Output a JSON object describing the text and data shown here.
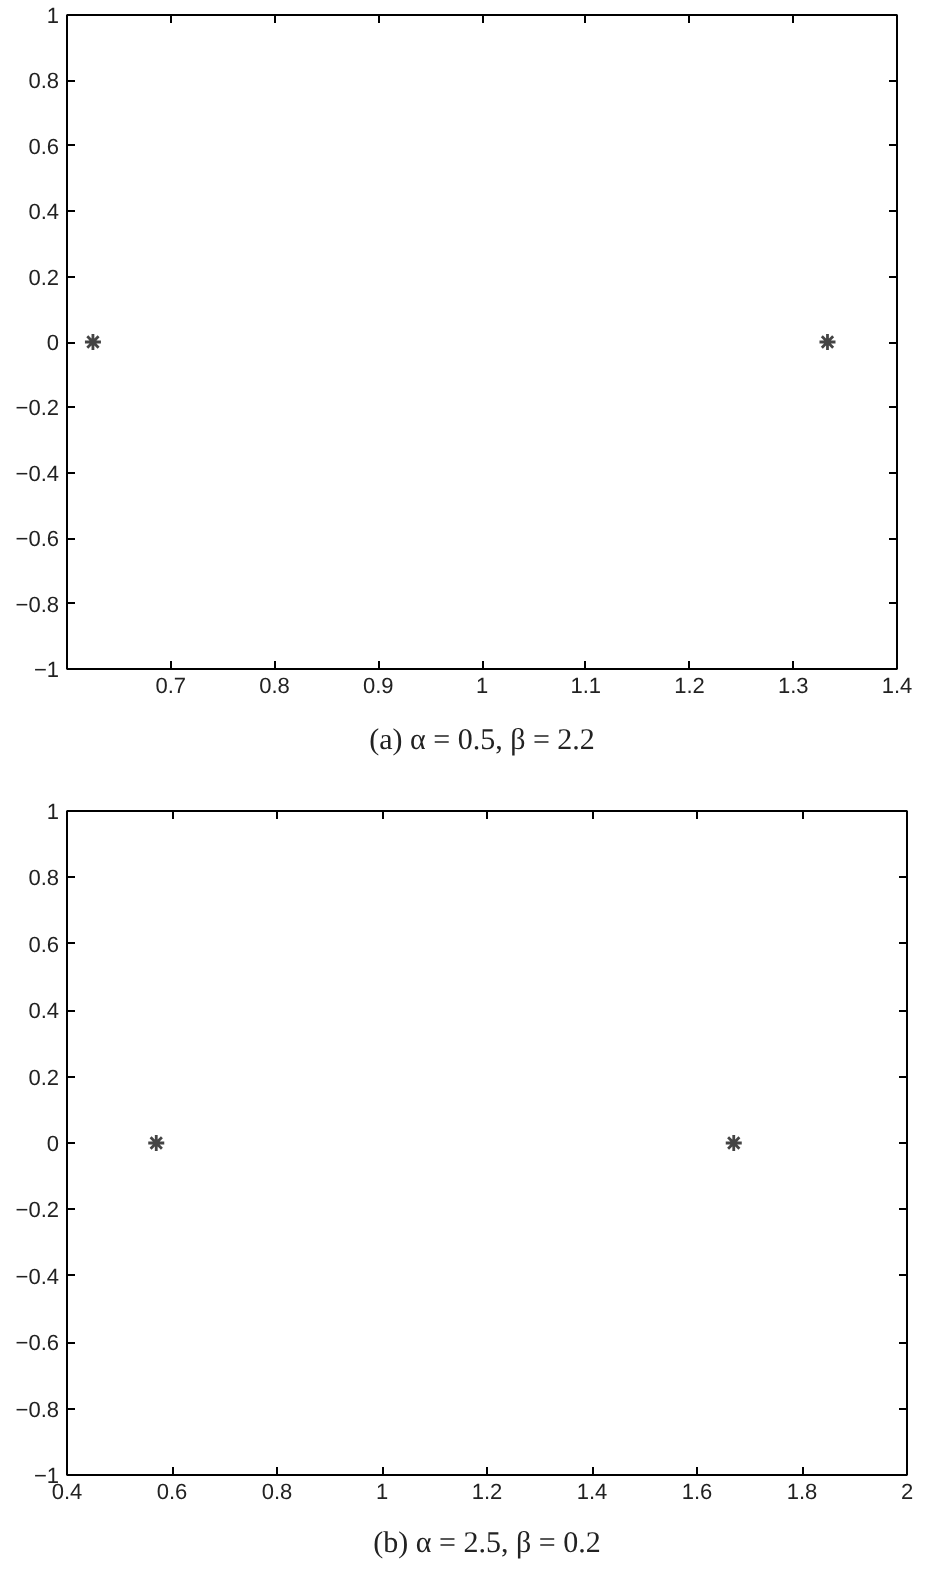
{
  "chart_data": [
    {
      "type": "scatter",
      "title": "(a) α = 0.5, β = 2.2",
      "x": [
        0.625,
        1.333
      ],
      "values": [
        0,
        0
      ],
      "color": "#444444",
      "marker": "cross",
      "grid": false,
      "xlim": [
        0.6,
        1.4
      ],
      "xticks": [
        0.7,
        0.8,
        0.9,
        1,
        1.1,
        1.2,
        1.3,
        1.4
      ],
      "ylim": [
        -1,
        1
      ],
      "yticks": [
        {
          "value": -1,
          "label": "−1"
        },
        {
          "value": -0.8,
          "label": "−0.8"
        },
        {
          "value": -0.6,
          "label": "−0.6"
        },
        {
          "value": -0.4,
          "label": "−0.4"
        },
        {
          "value": -0.2,
          "label": "−0.2"
        },
        0,
        0.2,
        0.4,
        0.6,
        0.8,
        1
      ]
    },
    {
      "type": "scatter",
      "title": "(b) α = 2.5, β = 0.2",
      "x": [
        0.57,
        1.67
      ],
      "values": [
        0,
        0
      ],
      "color": "#444444",
      "marker": "cross",
      "grid": false,
      "xlim": [
        0.4,
        2
      ],
      "xticks": [
        0.4,
        0.6,
        0.8,
        1,
        1.2,
        1.4,
        1.6,
        1.8,
        2
      ],
      "ylim": [
        -1,
        1
      ],
      "yticks": [
        {
          "value": -1,
          "label": "−1"
        },
        {
          "value": -0.8,
          "label": "−0.8"
        },
        {
          "value": -0.6,
          "label": "−0.6"
        },
        {
          "value": -0.4,
          "label": "−0.4"
        },
        {
          "value": -0.2,
          "label": "−0.2"
        },
        0,
        0.2,
        0.4,
        0.6,
        0.8,
        1
      ]
    }
  ]
}
